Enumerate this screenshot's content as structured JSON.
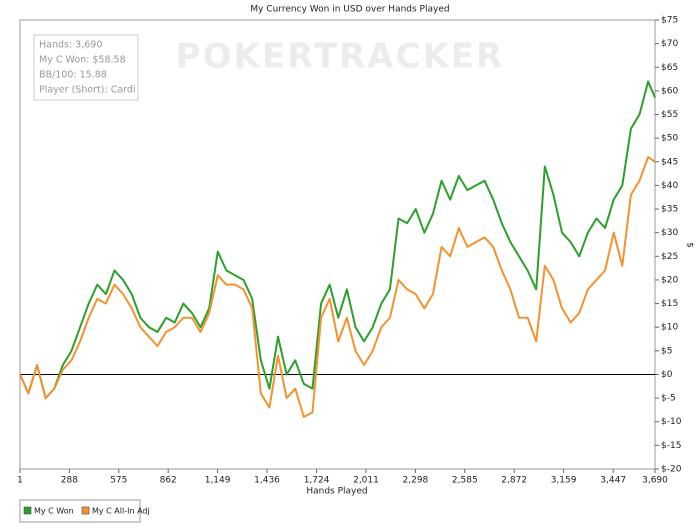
{
  "chart_data": {
    "type": "line",
    "title": "My Currency Won in USD over Hands Played",
    "x_label": "Hands Played",
    "y_label": "$",
    "watermark": "POKERTRACKER",
    "info_box": [
      "Hands: 3,690",
      "My C Won: $58.58",
      "BB/100: 15.88",
      "Player (Short): Cardi"
    ],
    "x": [
      1,
      50,
      100,
      150,
      200,
      250,
      300,
      350,
      400,
      450,
      500,
      550,
      600,
      650,
      700,
      750,
      800,
      850,
      900,
      950,
      1000,
      1050,
      1100,
      1150,
      1200,
      1250,
      1300,
      1350,
      1400,
      1450,
      1500,
      1550,
      1600,
      1650,
      1700,
      1750,
      1800,
      1850,
      1900,
      1950,
      2000,
      2050,
      2100,
      2150,
      2200,
      2250,
      2300,
      2350,
      2400,
      2450,
      2500,
      2550,
      2600,
      2650,
      2700,
      2750,
      2800,
      2850,
      2900,
      2950,
      3000,
      3050,
      3100,
      3150,
      3200,
      3250,
      3300,
      3350,
      3400,
      3450,
      3500,
      3550,
      3600,
      3650,
      3690
    ],
    "series": [
      {
        "name": "My C Won",
        "color": "#2ca02c",
        "values": [
          0,
          -4,
          2,
          -5,
          -3,
          2,
          5,
          10,
          15,
          19,
          17,
          22,
          20,
          17,
          12,
          10,
          9,
          12,
          11,
          15,
          13,
          10,
          14,
          26,
          22,
          21,
          20,
          16,
          3,
          -3,
          8,
          0,
          3,
          -2,
          -3,
          15,
          19,
          12,
          18,
          10,
          7,
          10,
          15,
          18,
          33,
          32,
          35,
          30,
          34,
          41,
          37,
          42,
          39,
          40,
          41,
          37,
          32,
          28,
          25,
          22,
          18,
          44,
          38,
          30,
          28,
          25,
          30,
          33,
          31,
          37,
          40,
          52,
          55,
          62,
          58.58
        ]
      },
      {
        "name": "My C All-In Adj",
        "color": "#f5922f",
        "values": [
          0,
          -4,
          2,
          -5,
          -3,
          1,
          3,
          7,
          12,
          16,
          15,
          19,
          17,
          14,
          10,
          8,
          6,
          9,
          10,
          12,
          12,
          9,
          13,
          21,
          19,
          19,
          18,
          14,
          -4,
          -7,
          4,
          -5,
          -3,
          -9,
          -8,
          12,
          16,
          7,
          12,
          5,
          2,
          5,
          10,
          12,
          20,
          18,
          17,
          14,
          17,
          27,
          25,
          31,
          27,
          28,
          29,
          27,
          22,
          18,
          12,
          12,
          7,
          23,
          20,
          14,
          11,
          13,
          18,
          20,
          22,
          30,
          23,
          38,
          41,
          46,
          45
        ]
      }
    ],
    "xlim": [
      1,
      3690
    ],
    "xticks": [
      1,
      288,
      575,
      862,
      {
        "value": 1149,
        "label": "1,149"
      },
      {
        "value": 1436,
        "label": "1,436"
      },
      {
        "value": 1724,
        "label": "1,724"
      },
      {
        "value": 2011,
        "label": "2,011"
      },
      {
        "value": 2298,
        "label": "2,298"
      },
      {
        "value": 2585,
        "label": "2,585"
      },
      {
        "value": 2872,
        "label": "2,872"
      },
      {
        "value": 3159,
        "label": "3,159"
      },
      {
        "value": 3447,
        "label": "3,447"
      },
      {
        "value": 3690,
        "label": "3,690"
      }
    ],
    "ylim": [
      -20,
      75
    ],
    "yticks": [
      {
        "value": -20,
        "label": "$-20"
      },
      {
        "value": -15,
        "label": "$-15"
      },
      {
        "value": -10,
        "label": "$-10"
      },
      {
        "value": -5,
        "label": "$-5"
      },
      {
        "value": 0,
        "label": "$0"
      },
      {
        "value": 5,
        "label": "$5"
      },
      {
        "value": 10,
        "label": "$10"
      },
      {
        "value": 15,
        "label": "$15"
      },
      {
        "value": 20,
        "label": "$20"
      },
      {
        "value": 25,
        "label": "$25"
      },
      {
        "value": 30,
        "label": "$30"
      },
      {
        "value": 35,
        "label": "$35"
      },
      {
        "value": 40,
        "label": "$40"
      },
      {
        "value": 45,
        "label": "$45"
      },
      {
        "value": 50,
        "label": "$50"
      },
      {
        "value": 55,
        "label": "$55"
      },
      {
        "value": 60,
        "label": "$60"
      },
      {
        "value": 65,
        "label": "$65"
      },
      {
        "value": 70,
        "label": "$70"
      },
      {
        "value": 75,
        "label": "$75"
      }
    ],
    "grid": false,
    "legend": "bottom-left"
  }
}
